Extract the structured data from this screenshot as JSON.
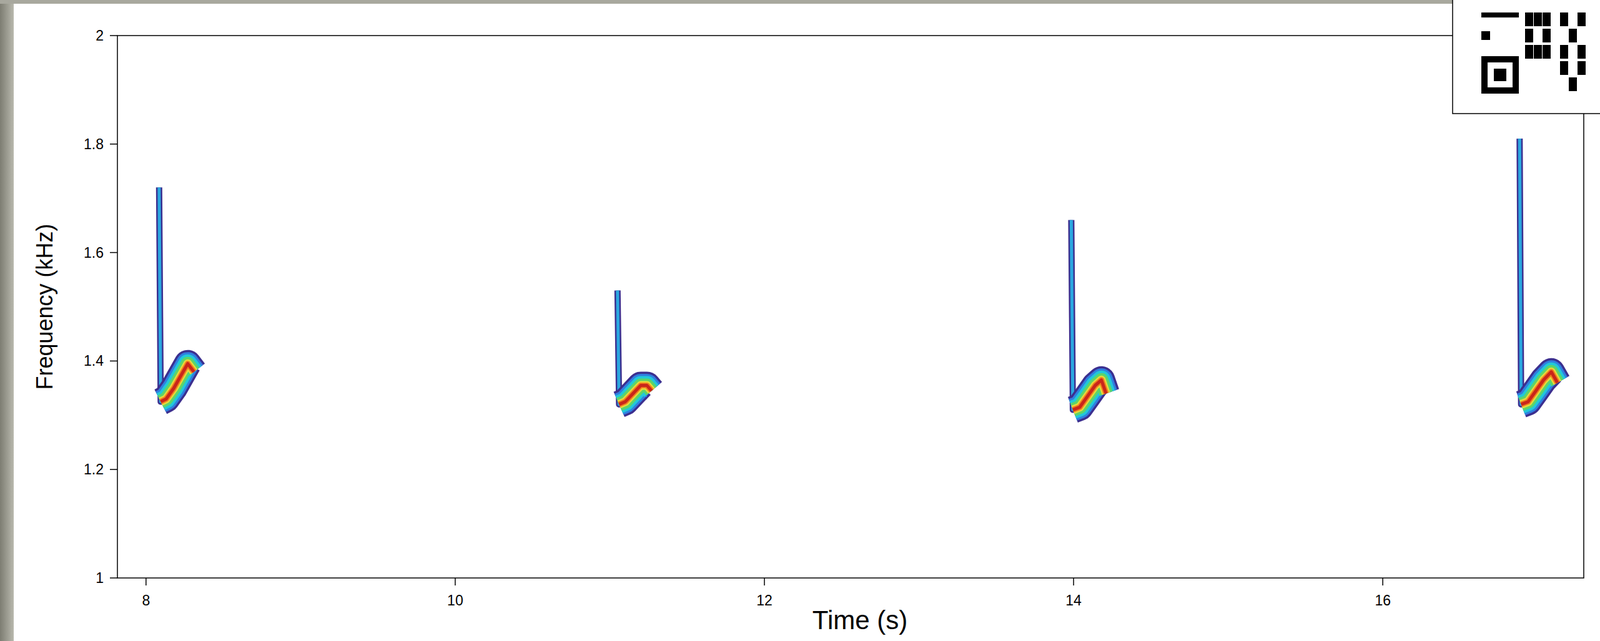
{
  "chart_data": {
    "type": "spectrogram",
    "x_label": "Time (s)",
    "y_label": "Frequency (kHz)",
    "xlim": [
      7.815,
      17.3
    ],
    "ylim": [
      1,
      2
    ],
    "xticks": [
      8,
      10,
      12,
      14,
      16
    ],
    "yticks": [
      1,
      1.2,
      1.4,
      1.6,
      1.8,
      2
    ],
    "series": [
      {
        "x": [
          8.085,
          8.095,
          8.13,
          8.18,
          8.23,
          8.27,
          8.31
        ],
        "values": [
          1.72,
          1.325,
          1.33,
          1.35,
          1.375,
          1.395,
          1.38
        ]
      },
      {
        "x": [
          11.05,
          11.06,
          11.1,
          11.15,
          11.2,
          11.24,
          11.27
        ],
        "values": [
          1.53,
          1.32,
          1.325,
          1.34,
          1.355,
          1.355,
          1.345
        ]
      },
      {
        "x": [
          13.985,
          13.995,
          14.04,
          14.09,
          14.14,
          14.18,
          14.21
        ],
        "values": [
          1.66,
          1.31,
          1.315,
          1.335,
          1.355,
          1.365,
          1.34
        ]
      },
      {
        "x": [
          16.885,
          16.895,
          16.94,
          16.99,
          17.04,
          17.09,
          17.13
        ],
        "values": [
          1.81,
          1.32,
          1.325,
          1.345,
          1.365,
          1.38,
          1.36
        ]
      }
    ]
  }
}
